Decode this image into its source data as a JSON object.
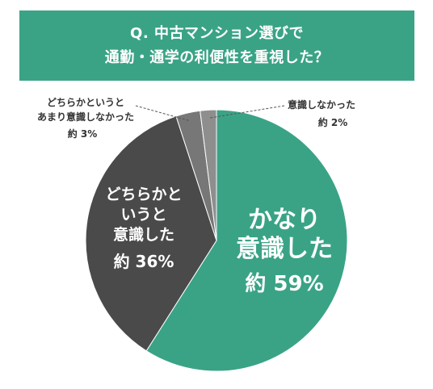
{
  "title": {
    "line1": "Q. 中古マンション選びで",
    "line2": "通勤・通学の利便性を重視した？"
  },
  "colors": {
    "header_bg": "#3aa386",
    "slice_59": "#3aa386",
    "slice_36": "#4a4a4a",
    "slice_3": "#777777",
    "slice_2": "#8e8e8e"
  },
  "chart_data": {
    "type": "pie",
    "slices": [
      {
        "label": "かなり意識した",
        "value": 59,
        "label_lines": [
          "かなり",
          "意識した"
        ],
        "value_text": "約 59%"
      },
      {
        "label": "どちらかというと意識した",
        "value": 36,
        "label_lines": [
          "どちらかと",
          "いうと",
          "意識した"
        ],
        "value_text": "約 36%"
      },
      {
        "label": "どちらかというとあまり意識しなかった",
        "value": 3,
        "label_lines": [
          "どちらかというと",
          "あまり意識しなかった"
        ],
        "value_text": "約 3%"
      },
      {
        "label": "意識しなかった",
        "value": 2,
        "label_lines": [
          "意識しなかった"
        ],
        "value_text": "約 2%"
      }
    ]
  }
}
